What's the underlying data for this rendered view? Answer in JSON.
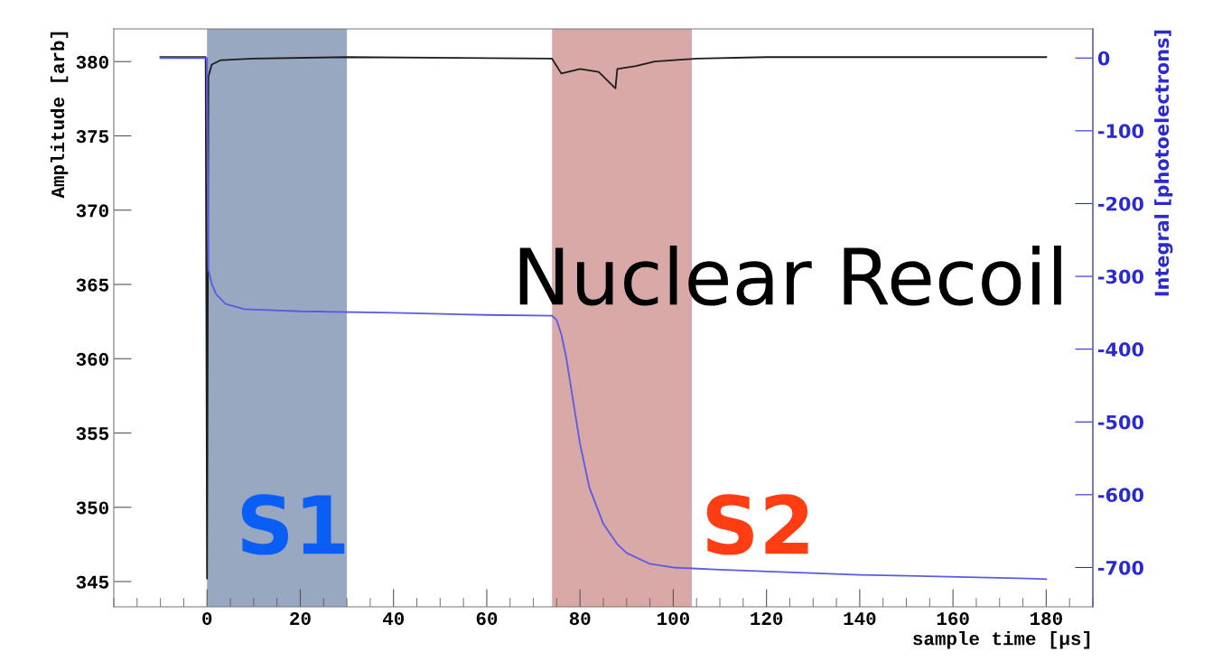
{
  "chart_data": {
    "type": "line",
    "xlabel": "sample time [µs]",
    "ylabel": "Amplitude [arb]",
    "y2label": "Integral [photoelectrons]",
    "xlim": [
      -20,
      190
    ],
    "xticks": [
      0,
      20,
      40,
      60,
      80,
      100,
      120,
      140,
      160,
      180
    ],
    "ylim": [
      343.3,
      382.2
    ],
    "yticks": [
      345,
      350,
      355,
      360,
      365,
      370,
      375,
      380
    ],
    "y2lim": [
      -754,
      40
    ],
    "y2ticks": [
      -700,
      -600,
      -500,
      -400,
      -300,
      -200,
      -100,
      0
    ],
    "series": [
      {
        "color": "#1c1c1c",
        "x": [
          -10,
          -0.3,
          0,
          0.3,
          1,
          3,
          10,
          30,
          74,
          76,
          80,
          84,
          87.6,
          88,
          92,
          96,
          105,
          120,
          150,
          180
        ],
        "values": [
          380.3,
          380.3,
          345.2,
          379.0,
          379.8,
          380.1,
          380.2,
          380.3,
          380.2,
          379.2,
          379.5,
          379.3,
          378.2,
          379.5,
          379.7,
          380.0,
          380.2,
          380.3,
          380.3,
          380.3
        ]
      },
      {
        "color": "#5a5ae6",
        "axis": "y2",
        "x": [
          -10,
          0,
          0.3,
          1,
          2,
          4,
          8,
          20,
          40,
          60,
          74,
          75,
          76,
          77,
          78,
          80,
          82,
          85,
          88,
          90,
          95,
          100,
          110,
          140,
          176,
          180
        ],
        "values": [
          0,
          0,
          -291,
          -310,
          -325,
          -338,
          -345,
          -348,
          -350,
          -353,
          -354,
          -360,
          -380,
          -410,
          -450,
          -530,
          -590,
          -640,
          -668,
          -680,
          -695,
          -700,
          -703,
          -710,
          -715,
          -716
        ]
      }
    ],
    "bands": [
      {
        "axis": "x",
        "from": 0,
        "to": 30,
        "color": "#97a8c0"
      },
      {
        "axis": "x",
        "from": 74,
        "to": 104,
        "color": "#d9a9a7"
      }
    ],
    "annotations": [
      "Nuclear Recoil",
      "S1",
      "S2"
    ],
    "grid": false,
    "legend": false
  }
}
